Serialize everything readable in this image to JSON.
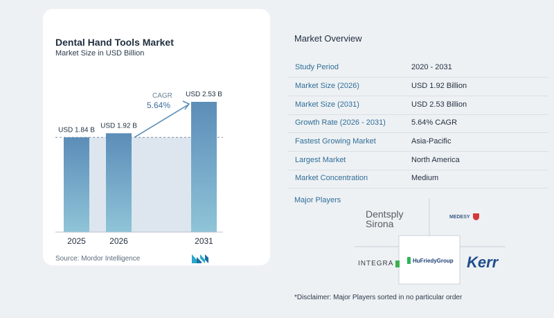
{
  "chart_panel": {
    "title": "Dental Hand Tools Market",
    "subtitle": "Market Size in USD Billion",
    "source": "Source:  Mordor Intelligence",
    "cagr_label": "CAGR",
    "cagr_value": "5.64%"
  },
  "chart_data": {
    "type": "bar",
    "title": "Dental Hand Tools Market",
    "subtitle": "Market Size in USD Billion",
    "categories": [
      "2025",
      "2026",
      "2031"
    ],
    "values": [
      1.84,
      1.92,
      2.53
    ],
    "data_labels": [
      "USD 1.84 B",
      "USD 1.92 B",
      "USD 2.53 B"
    ],
    "ylabel": "",
    "xlabel": "",
    "grid": false,
    "annotation": "CAGR 5.64%",
    "bar_color": "#5b8db8"
  },
  "overview": {
    "title": "Market Overview",
    "rows": [
      {
        "label": "Study Period",
        "value": "2020 - 2031"
      },
      {
        "label": "Market Size (2026)",
        "value": "USD 1.92 Billion"
      },
      {
        "label": "Market Size (2031)",
        "value": "USD 2.53 Billion"
      },
      {
        "label": "Growth Rate (2026 - 2031)",
        "value": "5.64% CAGR"
      },
      {
        "label": "Fastest Growing Market",
        "value": "Asia-Pacific"
      },
      {
        "label": "Largest Market",
        "value": "North America"
      },
      {
        "label": "Market Concentration",
        "value": "Medium"
      }
    ],
    "players_title": "Major Players",
    "players": [
      "Dentsply Sirona",
      "MEDESY",
      "INTEGRA",
      "HuFriedyGroup",
      "Kerr"
    ],
    "disclaimer": "*Disclaimer: Major Players sorted in no particular order"
  },
  "colors": {
    "bar": "#5b8db8",
    "label": "#2f6d97",
    "background": "#eef1f4"
  }
}
